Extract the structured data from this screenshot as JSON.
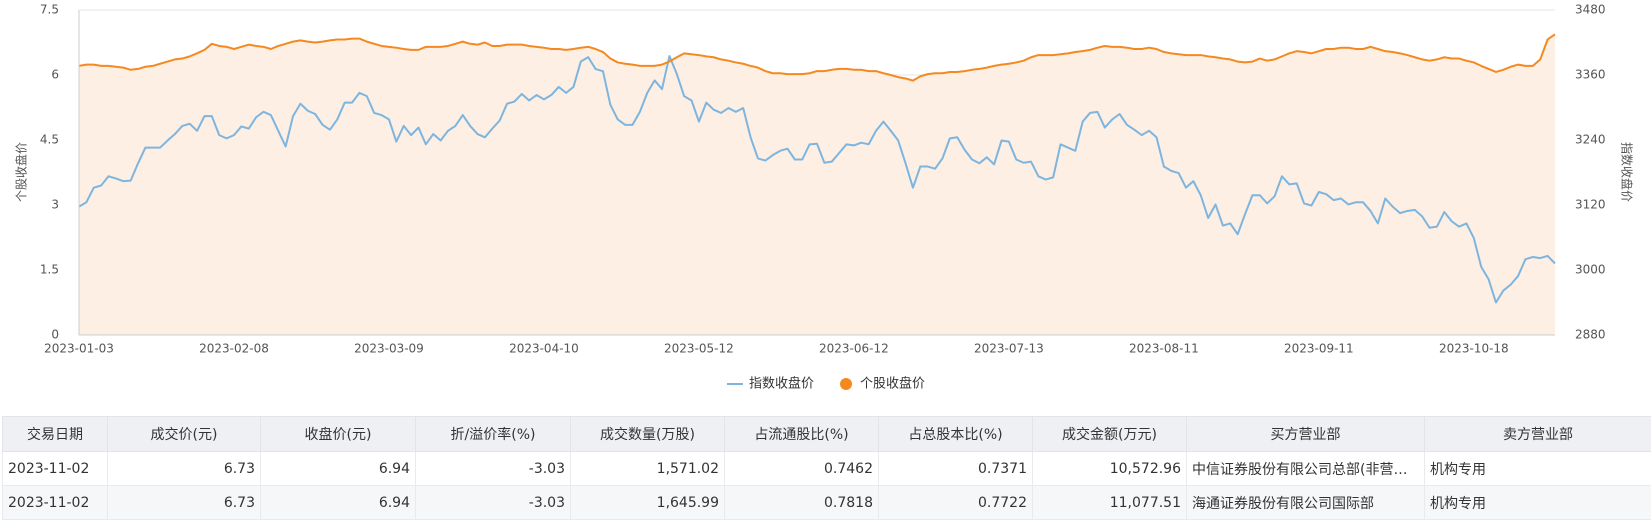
{
  "chart_data": {
    "type": "line",
    "ylabel": "个股收盘价",
    "y2label": "指数收盘价",
    "categories": [
      "2023-01-03",
      null,
      null,
      null,
      null,
      null,
      null,
      null,
      null,
      null,
      null,
      null,
      null,
      null,
      null,
      null,
      null,
      null,
      null,
      null,
      null,
      "2023-02-08",
      null,
      null,
      null,
      null,
      null,
      null,
      null,
      null,
      null,
      null,
      null,
      null,
      null,
      null,
      null,
      null,
      null,
      null,
      null,
      null,
      "2023-03-09",
      null,
      null,
      null,
      null,
      null,
      null,
      null,
      null,
      null,
      null,
      null,
      null,
      null,
      null,
      null,
      null,
      null,
      null,
      null,
      null,
      "2023-04-10",
      null,
      null,
      null,
      null,
      null,
      null,
      null,
      null,
      null,
      null,
      null,
      null,
      null,
      null,
      null,
      null,
      null,
      null,
      null,
      null,
      "2023-05-12",
      null,
      null,
      null,
      null,
      null,
      null,
      null,
      null,
      null,
      null,
      null,
      null,
      null,
      null,
      null,
      null,
      null,
      null,
      null,
      null,
      "2023-06-12",
      null,
      null,
      null,
      null,
      null,
      null,
      null,
      null,
      null,
      null,
      null,
      null,
      null,
      null,
      null,
      null,
      null,
      null,
      null,
      null,
      "2023-07-13",
      null,
      null,
      null,
      null,
      null,
      null,
      null,
      null,
      null,
      null,
      null,
      null,
      null,
      null,
      null,
      null,
      null,
      null,
      null,
      null,
      "2023-08-11",
      null,
      null,
      null,
      null,
      null,
      null,
      null,
      null,
      null,
      null,
      null,
      null,
      null,
      null,
      null,
      null,
      null,
      null,
      null,
      null,
      "2023-09-11",
      null,
      null,
      null,
      null,
      null,
      null,
      null,
      null,
      null,
      null,
      null,
      null,
      null,
      null,
      null,
      null,
      null,
      null,
      null,
      null,
      "2023-10-18",
      null,
      null,
      null,
      null,
      null,
      null,
      null,
      null,
      null,
      null,
      null
    ],
    "series": [
      {
        "name": "指数收盘价",
        "color": "#7db5df",
        "axis": "y2",
        "values": [
          3117,
          3125,
          3152,
          3156,
          3173,
          3169,
          3164,
          3165,
          3197,
          3226,
          3226,
          3226,
          3239,
          3251,
          3266,
          3270,
          3257,
          3284,
          3284,
          3249,
          3243,
          3249,
          3265,
          3261,
          3282,
          3292,
          3286,
          3257,
          3228,
          3284,
          3307,
          3294,
          3288,
          3268,
          3259,
          3278,
          3309,
          3309,
          3327,
          3321,
          3290,
          3286,
          3278,
          3237,
          3266,
          3249,
          3263,
          3232,
          3251,
          3239,
          3257,
          3266,
          3286,
          3266,
          3251,
          3245,
          3261,
          3276,
          3307,
          3311,
          3325,
          3313,
          3323,
          3315,
          3323,
          3338,
          3327,
          3338,
          3385,
          3393,
          3371,
          3367,
          3305,
          3278,
          3268,
          3268,
          3292,
          3327,
          3350,
          3334,
          3395,
          3362,
          3321,
          3313,
          3274,
          3309,
          3296,
          3290,
          3299,
          3292,
          3299,
          3245,
          3206,
          3202,
          3212,
          3220,
          3224,
          3204,
          3204,
          3232,
          3233,
          3198,
          3200,
          3216,
          3232,
          3230,
          3235,
          3232,
          3257,
          3274,
          3257,
          3239,
          3197,
          3152,
          3191,
          3191,
          3187,
          3206,
          3243,
          3245,
          3222,
          3204,
          3197,
          3208,
          3195,
          3239,
          3237,
          3204,
          3198,
          3200,
          3173,
          3167,
          3171,
          3232,
          3226,
          3220,
          3274,
          3290,
          3292,
          3263,
          3278,
          3288,
          3268,
          3259,
          3249,
          3257,
          3245,
          3191,
          3183,
          3179,
          3152,
          3164,
          3138,
          3096,
          3121,
          3082,
          3086,
          3066,
          3103,
          3138,
          3138,
          3123,
          3136,
          3173,
          3158,
          3160,
          3123,
          3119,
          3144,
          3140,
          3129,
          3132,
          3121,
          3125,
          3125,
          3109,
          3086,
          3132,
          3117,
          3105,
          3109,
          3111,
          3099,
          3078,
          3080,
          3107,
          3090,
          3080,
          3086,
          3059,
          3006,
          2983,
          2940,
          2962,
          2973,
          2989,
          3020,
          3024,
          3022,
          3026,
          3012
        ]
      },
      {
        "name": "个股收盘价",
        "color": "#f5891f",
        "area": true,
        "area_color": "#fdefe4",
        "values": [
          6.21,
          6.24,
          6.24,
          6.21,
          6.21,
          6.19,
          6.17,
          6.12,
          6.14,
          6.19,
          6.21,
          6.26,
          6.31,
          6.36,
          6.38,
          6.43,
          6.5,
          6.58,
          6.72,
          6.67,
          6.65,
          6.6,
          6.65,
          6.7,
          6.67,
          6.65,
          6.6,
          6.67,
          6.72,
          6.77,
          6.8,
          6.77,
          6.75,
          6.77,
          6.8,
          6.82,
          6.82,
          6.84,
          6.84,
          6.77,
          6.72,
          6.67,
          6.65,
          6.63,
          6.6,
          6.58,
          6.58,
          6.65,
          6.65,
          6.65,
          6.67,
          6.72,
          6.77,
          6.72,
          6.7,
          6.75,
          6.67,
          6.67,
          6.7,
          6.7,
          6.7,
          6.67,
          6.65,
          6.63,
          6.6,
          6.6,
          6.58,
          6.6,
          6.63,
          6.65,
          6.6,
          6.53,
          6.38,
          6.29,
          6.26,
          6.24,
          6.21,
          6.21,
          6.21,
          6.24,
          6.31,
          6.41,
          6.5,
          6.48,
          6.46,
          6.43,
          6.41,
          6.36,
          6.33,
          6.29,
          6.26,
          6.21,
          6.17,
          6.09,
          6.04,
          6.04,
          6.02,
          6.02,
          6.02,
          6.04,
          6.09,
          6.09,
          6.12,
          6.14,
          6.14,
          6.12,
          6.12,
          6.09,
          6.09,
          6.04,
          6.0,
          5.95,
          5.92,
          5.87,
          5.97,
          6.02,
          6.04,
          6.04,
          6.07,
          6.07,
          6.09,
          6.12,
          6.14,
          6.17,
          6.21,
          6.24,
          6.26,
          6.29,
          6.33,
          6.41,
          6.46,
          6.46,
          6.46,
          6.48,
          6.5,
          6.53,
          6.55,
          6.58,
          6.63,
          6.67,
          6.65,
          6.65,
          6.63,
          6.6,
          6.6,
          6.63,
          6.6,
          6.53,
          6.5,
          6.48,
          6.46,
          6.46,
          6.46,
          6.43,
          6.41,
          6.38,
          6.36,
          6.31,
          6.29,
          6.31,
          6.38,
          6.33,
          6.36,
          6.43,
          6.5,
          6.55,
          6.53,
          6.5,
          6.55,
          6.6,
          6.6,
          6.63,
          6.63,
          6.6,
          6.6,
          6.65,
          6.6,
          6.55,
          6.53,
          6.5,
          6.46,
          6.41,
          6.36,
          6.33,
          6.36,
          6.41,
          6.38,
          6.38,
          6.33,
          6.29,
          6.21,
          6.14,
          6.07,
          6.12,
          6.19,
          6.24,
          6.21,
          6.21,
          6.36,
          6.82,
          6.94
        ]
      }
    ],
    "ylim": [
      0,
      7.5
    ],
    "yticks": [
      0,
      1.5,
      3,
      4.5,
      6,
      7.5
    ],
    "y2lim": [
      2880,
      3480
    ],
    "y2ticks": [
      2880,
      3000,
      3120,
      3240,
      3360,
      3480
    ],
    "grid": true,
    "legend": "bottom"
  },
  "table": {
    "columns": [
      "交易日期",
      "成交价(元)",
      "收盘价(元)",
      "折/溢价率(%)",
      "成交数量(万股)",
      "占流通股比(%)",
      "占总股本比(%)",
      "成交金额(万元)",
      "买方营业部",
      "卖方营业部"
    ],
    "rows": [
      [
        "2023-11-02",
        "6.73",
        "6.94",
        "-3.03",
        "1,571.02",
        "0.7462",
        "0.7371",
        "10,572.96",
        "中信证券股份有限公司总部(非营…",
        "机构专用"
      ],
      [
        "2023-11-02",
        "6.73",
        "6.94",
        "-3.03",
        "1,645.99",
        "0.7818",
        "0.7722",
        "11,077.51",
        "海通证券股份有限公司国际部",
        "机构专用"
      ]
    ]
  }
}
